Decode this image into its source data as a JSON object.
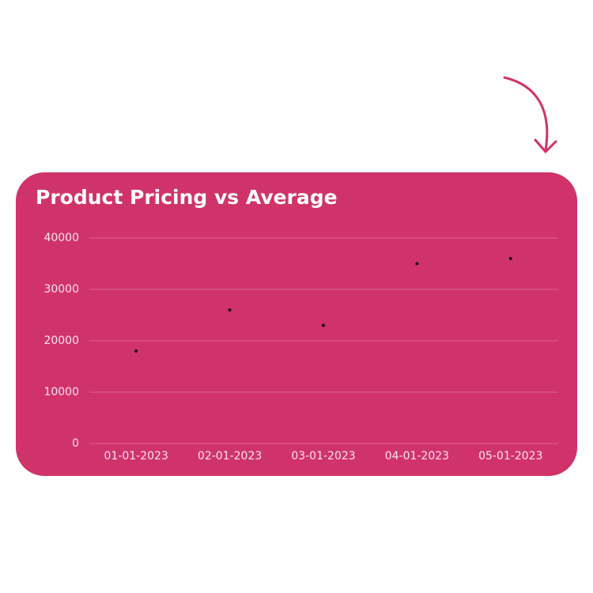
{
  "chart_data": {
    "type": "scatter",
    "title": "Product Pricing vs Average",
    "categories": [
      "01-01-2023",
      "02-01-2023",
      "03-01-2023",
      "04-01-2023",
      "05-01-2023"
    ],
    "values": [
      18000,
      26000,
      23000,
      35000,
      36000
    ],
    "color": "#1a0a10",
    "ylim": [
      0,
      40000
    ],
    "yticks": [
      0,
      10000,
      20000,
      30000,
      40000
    ],
    "grid": true
  }
}
